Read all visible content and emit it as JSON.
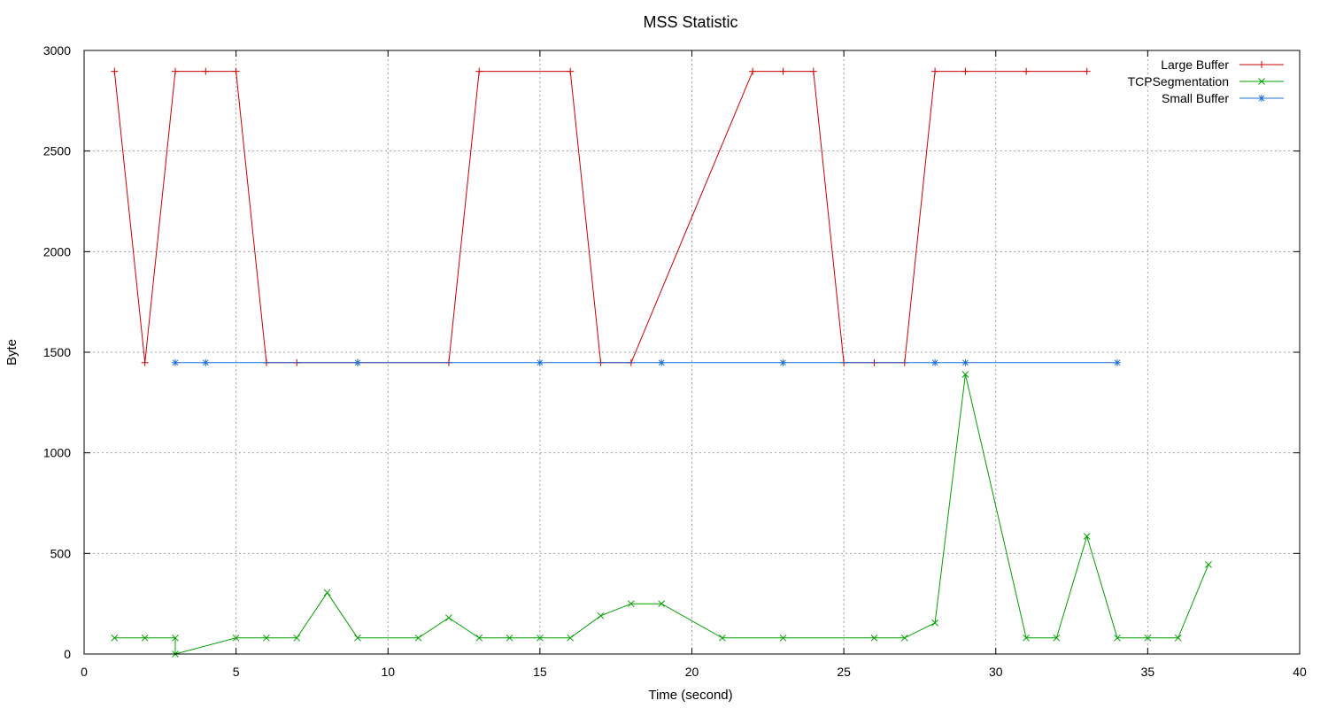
{
  "chart_data": {
    "type": "line",
    "title": "MSS Statistic",
    "xlabel": "Time (second)",
    "ylabel": "Byte",
    "xlim": [
      0,
      40
    ],
    "ylim": [
      0,
      3000
    ],
    "x_ticks": [
      0,
      5,
      10,
      15,
      20,
      25,
      30,
      35,
      40
    ],
    "y_ticks": [
      0,
      500,
      1000,
      1500,
      2000,
      2500,
      3000
    ],
    "grid": true,
    "legend_position": "top-right",
    "series": [
      {
        "name": "Large Buffer",
        "color": "#cc0000",
        "marker": "plus",
        "points": [
          [
            1,
            2896
          ],
          [
            2,
            1448
          ],
          [
            3,
            2896
          ],
          [
            4,
            2896
          ],
          [
            5,
            2896
          ],
          [
            6,
            1448
          ],
          [
            7,
            1448
          ],
          [
            9,
            1448
          ],
          [
            12,
            1448
          ],
          [
            13,
            2896
          ],
          [
            16,
            2896
          ],
          [
            17,
            1448
          ],
          [
            18,
            1448
          ],
          [
            22,
            2896
          ],
          [
            23,
            2896
          ],
          [
            24,
            2896
          ],
          [
            25,
            1448
          ],
          [
            26,
            1448
          ],
          [
            27,
            1448
          ],
          [
            28,
            2896
          ],
          [
            29,
            2896
          ],
          [
            31,
            2896
          ],
          [
            33,
            2896
          ]
        ]
      },
      {
        "name": "TCPSegmentation",
        "color": "#00a000",
        "marker": "cross",
        "points": [
          [
            1,
            80
          ],
          [
            2,
            80
          ],
          [
            3,
            80
          ],
          [
            3,
            0
          ],
          [
            5,
            80
          ],
          [
            6,
            80
          ],
          [
            7,
            80
          ],
          [
            8,
            305
          ],
          [
            9,
            80
          ],
          [
            11,
            80
          ],
          [
            12,
            180
          ],
          [
            13,
            80
          ],
          [
            14,
            80
          ],
          [
            15,
            80
          ],
          [
            16,
            80
          ],
          [
            17,
            190
          ],
          [
            18,
            250
          ],
          [
            19,
            250
          ],
          [
            21,
            80
          ],
          [
            23,
            80
          ],
          [
            26,
            80
          ],
          [
            27,
            80
          ],
          [
            28,
            155
          ],
          [
            29,
            1390
          ],
          [
            31,
            80
          ],
          [
            32,
            80
          ],
          [
            33,
            585
          ],
          [
            34,
            80
          ],
          [
            35,
            80
          ],
          [
            36,
            80
          ],
          [
            37,
            445
          ]
        ]
      },
      {
        "name": "Small Buffer",
        "color": "#1a6fd0",
        "marker": "star",
        "points": [
          [
            3,
            1448
          ],
          [
            4,
            1448
          ],
          [
            9,
            1448
          ],
          [
            15,
            1448
          ],
          [
            19,
            1448
          ],
          [
            23,
            1448
          ],
          [
            28,
            1448
          ],
          [
            29,
            1448
          ],
          [
            34,
            1448
          ]
        ]
      }
    ]
  }
}
